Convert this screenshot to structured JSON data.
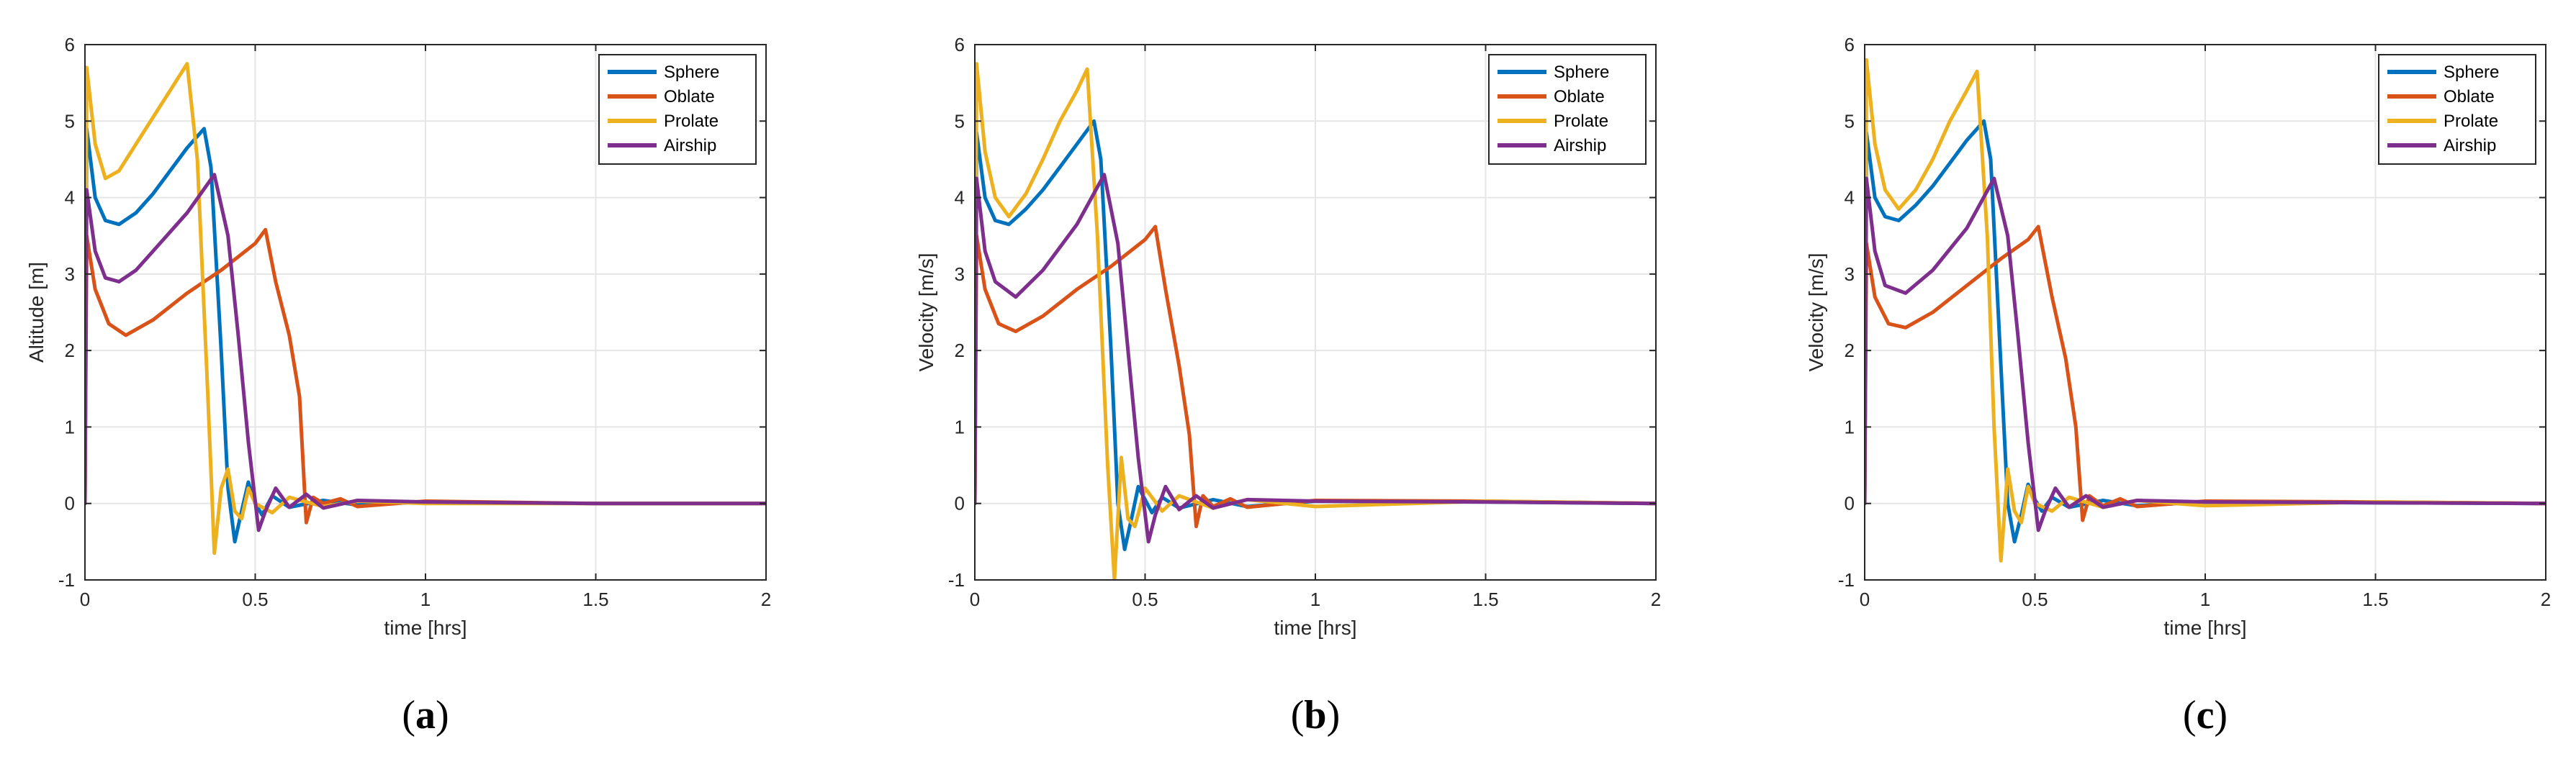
{
  "chart_data": [
    {
      "panel": "a",
      "caption": "(a)",
      "type": "line",
      "xlabel": "time [hrs]",
      "ylabel": "Altitude [m]",
      "xlim": [
        0,
        2
      ],
      "ylim": [
        -1,
        6
      ],
      "xticks": [
        0,
        0.5,
        1,
        1.5,
        2
      ],
      "xtick_labels": [
        "0",
        "0.5",
        "1",
        "1.5",
        "2"
      ],
      "yticks": [
        -1,
        0,
        1,
        2,
        3,
        4,
        5,
        6
      ],
      "ytick_labels": [
        "-1",
        "0",
        "1",
        "2",
        "3",
        "4",
        "5",
        "6"
      ],
      "grid": true,
      "legend_position": "top-right",
      "series": [
        {
          "name": "Sphere",
          "color": "#0072BD",
          "x": [
            0,
            0.005,
            0.03,
            0.06,
            0.1,
            0.15,
            0.2,
            0.25,
            0.3,
            0.35,
            0.37,
            0.4,
            0.42,
            0.44,
            0.46,
            0.48,
            0.5,
            0.52,
            0.55,
            0.6,
            0.7,
            0.8,
            1.0,
            1.2,
            1.5,
            2.0
          ],
          "y": [
            0,
            4.9,
            4.0,
            3.7,
            3.65,
            3.8,
            4.05,
            4.35,
            4.65,
            4.9,
            4.4,
            2.0,
            0.2,
            -0.5,
            -0.1,
            0.28,
            0.0,
            -0.15,
            0.1,
            -0.05,
            0.04,
            -0.02,
            0.02,
            0.01,
            0.0,
            0.0
          ]
        },
        {
          "name": "Oblate",
          "color": "#D95319",
          "x": [
            0,
            0.005,
            0.03,
            0.07,
            0.12,
            0.2,
            0.3,
            0.4,
            0.5,
            0.53,
            0.56,
            0.6,
            0.63,
            0.65,
            0.67,
            0.7,
            0.75,
            0.8,
            1.0,
            1.5,
            2.0
          ],
          "y": [
            0,
            3.5,
            2.8,
            2.35,
            2.2,
            2.4,
            2.75,
            3.05,
            3.4,
            3.58,
            2.9,
            2.2,
            1.4,
            -0.25,
            0.08,
            0.0,
            0.06,
            -0.04,
            0.03,
            0.0,
            0.0
          ]
        },
        {
          "name": "Prolate",
          "color": "#EDB120",
          "x": [
            0,
            0.005,
            0.03,
            0.06,
            0.1,
            0.15,
            0.2,
            0.25,
            0.3,
            0.33,
            0.36,
            0.38,
            0.4,
            0.42,
            0.44,
            0.46,
            0.48,
            0.5,
            0.55,
            0.6,
            0.7,
            0.8,
            1.0,
            1.5,
            2.0
          ],
          "y": [
            0,
            5.7,
            4.7,
            4.25,
            4.35,
            4.7,
            5.05,
            5.4,
            5.75,
            4.5,
            1.5,
            -0.65,
            0.2,
            0.45,
            -0.1,
            -0.2,
            0.2,
            0.0,
            -0.12,
            0.08,
            -0.04,
            0.03,
            0.0,
            0.0,
            0.0
          ]
        },
        {
          "name": "Airship",
          "color": "#7E2F8E",
          "x": [
            0,
            0.005,
            0.03,
            0.06,
            0.1,
            0.15,
            0.2,
            0.3,
            0.38,
            0.42,
            0.45,
            0.48,
            0.51,
            0.53,
            0.56,
            0.6,
            0.65,
            0.7,
            0.8,
            1.0,
            1.5,
            2.0
          ],
          "y": [
            0,
            4.1,
            3.3,
            2.95,
            2.9,
            3.05,
            3.3,
            3.8,
            4.3,
            3.5,
            2.2,
            0.8,
            -0.35,
            -0.1,
            0.2,
            -0.05,
            0.12,
            -0.06,
            0.04,
            0.02,
            0.0,
            0.0
          ]
        }
      ]
    },
    {
      "panel": "b",
      "caption": "(b)",
      "type": "line",
      "xlabel": "time [hrs]",
      "ylabel": "Velocity [m/s]",
      "xlim": [
        0,
        2
      ],
      "ylim": [
        -1,
        6
      ],
      "xticks": [
        0,
        0.5,
        1,
        1.5,
        2
      ],
      "xtick_labels": [
        "0",
        "0.5",
        "1",
        "1.5",
        "2"
      ],
      "yticks": [
        -1,
        0,
        1,
        2,
        3,
        4,
        5,
        6
      ],
      "ytick_labels": [
        "-1",
        "0",
        "1",
        "2",
        "3",
        "4",
        "5",
        "6"
      ],
      "grid": true,
      "legend_position": "top-right",
      "series": [
        {
          "name": "Sphere",
          "color": "#0072BD",
          "x": [
            0,
            0.005,
            0.03,
            0.06,
            0.1,
            0.15,
            0.2,
            0.25,
            0.3,
            0.35,
            0.37,
            0.4,
            0.42,
            0.44,
            0.46,
            0.48,
            0.5,
            0.52,
            0.55,
            0.6,
            0.7,
            0.8,
            1.0,
            1.5,
            2.0
          ],
          "y": [
            0,
            4.85,
            4.0,
            3.7,
            3.65,
            3.85,
            4.1,
            4.4,
            4.7,
            5.0,
            4.5,
            2.0,
            0.0,
            -0.6,
            -0.2,
            0.22,
            0.05,
            -0.12,
            0.08,
            -0.06,
            0.05,
            -0.04,
            0.03,
            0.02,
            0.0
          ]
        },
        {
          "name": "Oblate",
          "color": "#D95319",
          "x": [
            0,
            0.005,
            0.03,
            0.07,
            0.12,
            0.2,
            0.3,
            0.4,
            0.5,
            0.53,
            0.56,
            0.6,
            0.63,
            0.65,
            0.67,
            0.7,
            0.75,
            0.8,
            1.0,
            1.5,
            2.0
          ],
          "y": [
            0,
            3.5,
            2.8,
            2.35,
            2.25,
            2.45,
            2.8,
            3.1,
            3.45,
            3.62,
            2.8,
            1.8,
            0.9,
            -0.3,
            0.1,
            -0.04,
            0.06,
            -0.05,
            0.04,
            0.03,
            0.0
          ]
        },
        {
          "name": "Prolate",
          "color": "#EDB120",
          "x": [
            0,
            0.005,
            0.03,
            0.06,
            0.1,
            0.15,
            0.2,
            0.25,
            0.3,
            0.33,
            0.36,
            0.39,
            0.41,
            0.43,
            0.45,
            0.47,
            0.5,
            0.55,
            0.6,
            0.7,
            0.8,
            1.0,
            1.5,
            2.0
          ],
          "y": [
            0,
            5.75,
            4.6,
            4.0,
            3.75,
            4.05,
            4.5,
            5.0,
            5.4,
            5.68,
            3.5,
            0.5,
            -1.0,
            0.6,
            -0.2,
            -0.3,
            0.2,
            -0.1,
            0.1,
            -0.06,
            0.05,
            -0.04,
            0.03,
            0.0
          ]
        },
        {
          "name": "Airship",
          "color": "#7E2F8E",
          "x": [
            0,
            0.005,
            0.03,
            0.06,
            0.12,
            0.2,
            0.3,
            0.38,
            0.42,
            0.45,
            0.48,
            0.51,
            0.53,
            0.56,
            0.6,
            0.65,
            0.7,
            0.8,
            1.0,
            1.5,
            2.0
          ],
          "y": [
            0,
            4.25,
            3.3,
            2.9,
            2.7,
            3.05,
            3.65,
            4.3,
            3.4,
            2.0,
            0.6,
            -0.5,
            -0.15,
            0.22,
            -0.08,
            0.1,
            -0.06,
            0.05,
            0.03,
            0.02,
            0.0
          ]
        }
      ]
    },
    {
      "panel": "c",
      "caption": "(c)",
      "type": "line",
      "xlabel": "time [hrs]",
      "ylabel": "Velocity [m/s]",
      "xlim": [
        0,
        2
      ],
      "ylim": [
        -1,
        6
      ],
      "xticks": [
        0,
        0.5,
        1,
        1.5,
        2
      ],
      "xtick_labels": [
        "0",
        "0.5",
        "1",
        "1.5",
        "2"
      ],
      "yticks": [
        -1,
        0,
        1,
        2,
        3,
        4,
        5,
        6
      ],
      "ytick_labels": [
        "-1",
        "0",
        "1",
        "2",
        "3",
        "4",
        "5",
        "6"
      ],
      "grid": true,
      "legend_position": "top-right",
      "series": [
        {
          "name": "Sphere",
          "color": "#0072BD",
          "x": [
            0,
            0.005,
            0.03,
            0.06,
            0.1,
            0.15,
            0.2,
            0.25,
            0.3,
            0.35,
            0.37,
            0.4,
            0.42,
            0.44,
            0.46,
            0.48,
            0.5,
            0.52,
            0.55,
            0.6,
            0.7,
            0.8,
            1.0,
            1.5,
            2.0
          ],
          "y": [
            0,
            4.85,
            4.0,
            3.75,
            3.7,
            3.9,
            4.15,
            4.45,
            4.75,
            5.0,
            4.5,
            1.8,
            0.0,
            -0.5,
            -0.15,
            0.25,
            0.05,
            -0.1,
            0.08,
            -0.05,
            0.04,
            -0.03,
            0.02,
            0.01,
            0.0
          ]
        },
        {
          "name": "Oblate",
          "color": "#D95319",
          "x": [
            0,
            0.005,
            0.03,
            0.07,
            0.12,
            0.2,
            0.3,
            0.4,
            0.48,
            0.51,
            0.55,
            0.59,
            0.62,
            0.64,
            0.66,
            0.7,
            0.75,
            0.8,
            1.0,
            1.5,
            2.0
          ],
          "y": [
            0,
            3.4,
            2.7,
            2.35,
            2.3,
            2.5,
            2.85,
            3.2,
            3.45,
            3.62,
            2.7,
            1.9,
            1.0,
            -0.22,
            0.1,
            -0.03,
            0.06,
            -0.04,
            0.03,
            0.02,
            0.0
          ]
        },
        {
          "name": "Prolate",
          "color": "#EDB120",
          "x": [
            0,
            0.005,
            0.03,
            0.06,
            0.1,
            0.15,
            0.2,
            0.25,
            0.3,
            0.33,
            0.36,
            0.38,
            0.4,
            0.42,
            0.44,
            0.46,
            0.48,
            0.5,
            0.55,
            0.6,
            0.7,
            0.8,
            1.0,
            1.5,
            2.0
          ],
          "y": [
            0,
            5.8,
            4.7,
            4.1,
            3.85,
            4.1,
            4.5,
            5.0,
            5.4,
            5.65,
            3.5,
            1.0,
            -0.75,
            0.45,
            -0.1,
            -0.25,
            0.22,
            0.0,
            -0.1,
            0.08,
            -0.05,
            0.04,
            -0.03,
            0.02,
            0.0
          ]
        },
        {
          "name": "Airship",
          "color": "#7E2F8E",
          "x": [
            0,
            0.005,
            0.03,
            0.06,
            0.12,
            0.2,
            0.3,
            0.38,
            0.42,
            0.45,
            0.48,
            0.51,
            0.53,
            0.56,
            0.6,
            0.65,
            0.7,
            0.8,
            1.0,
            1.5,
            2.0
          ],
          "y": [
            0,
            4.25,
            3.3,
            2.85,
            2.75,
            3.05,
            3.6,
            4.25,
            3.5,
            2.2,
            0.8,
            -0.35,
            -0.1,
            0.2,
            -0.05,
            0.1,
            -0.05,
            0.04,
            0.02,
            0.01,
            0.0
          ]
        }
      ]
    }
  ]
}
